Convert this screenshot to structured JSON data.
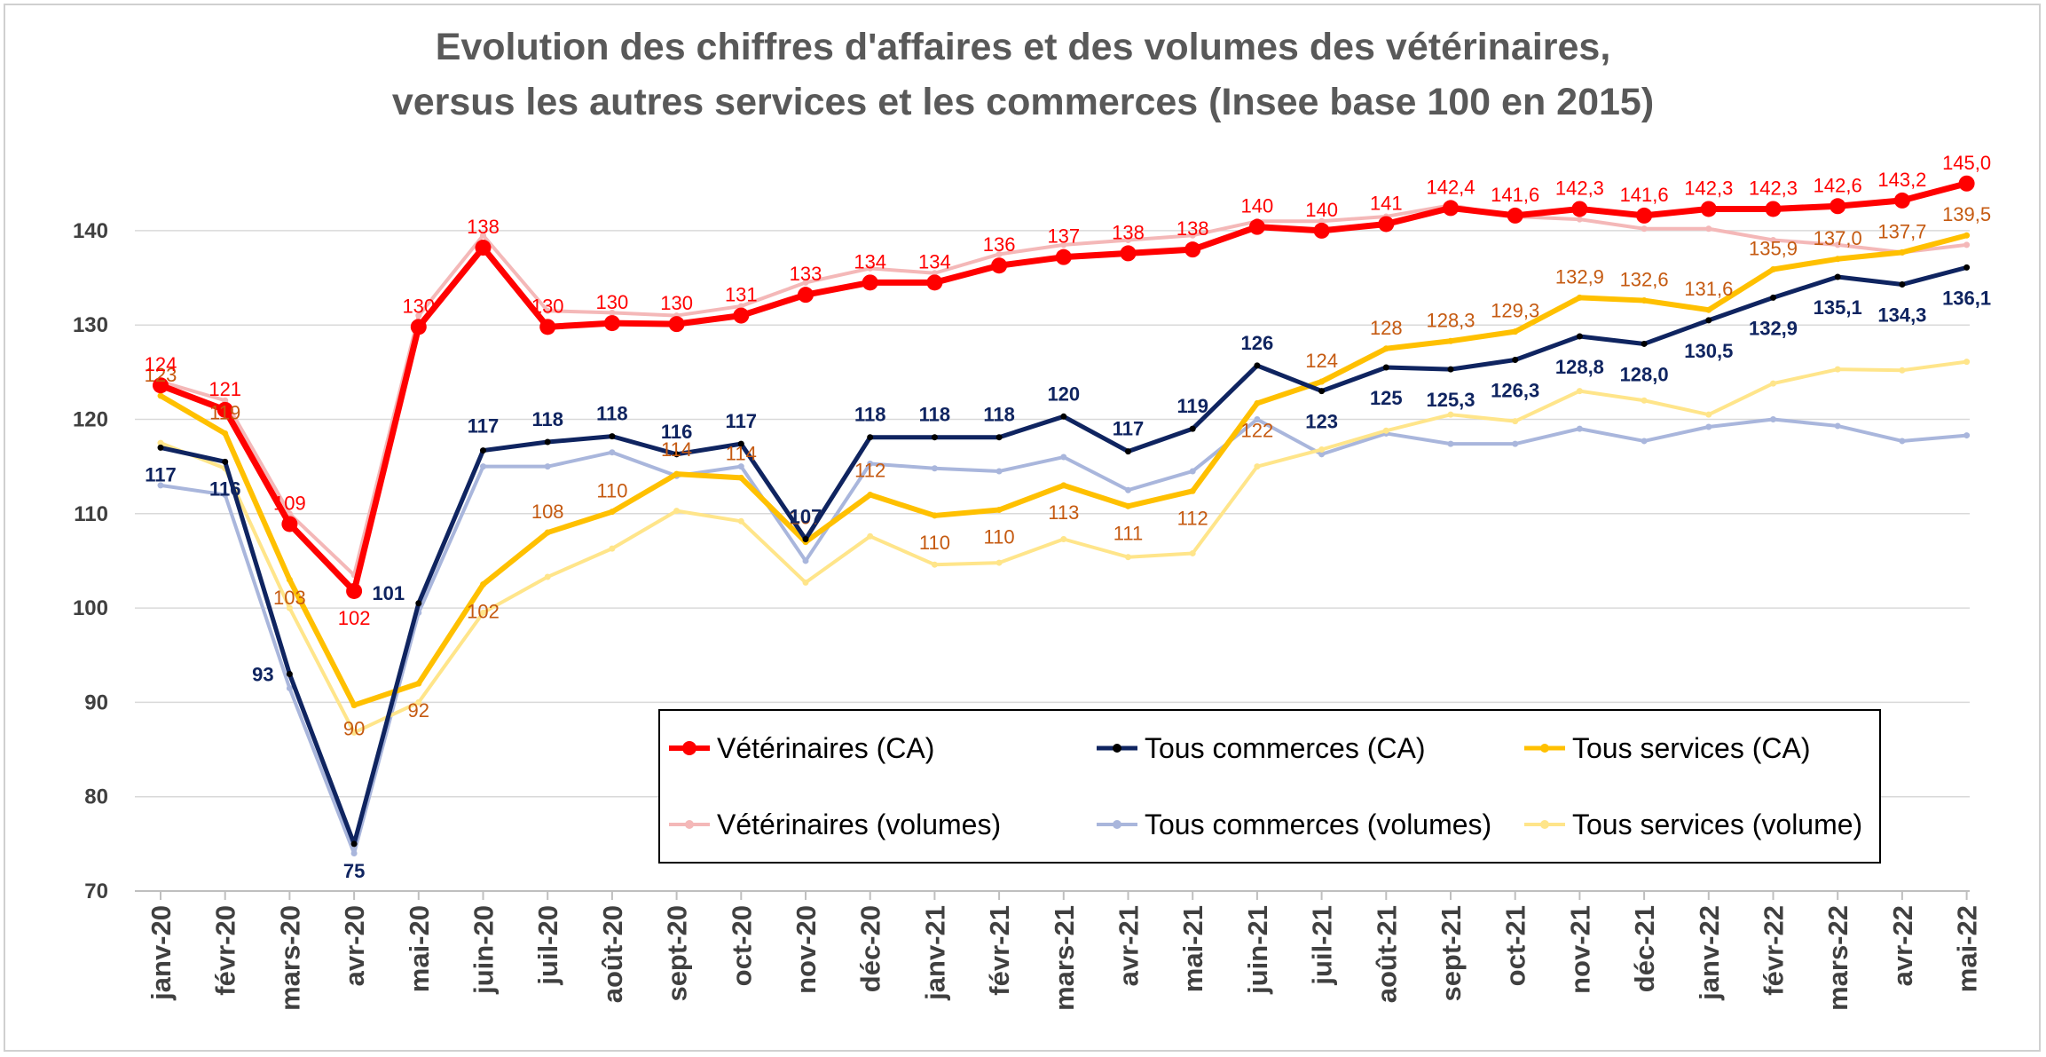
{
  "chart_data": {
    "type": "line",
    "title": "Evolution des chiffres d'affaires et des volumes des vétérinaires,",
    "subtitle": "versus les autres services et les commerces (Insee base 100 en 2015)",
    "xlabel": "",
    "ylabel": "",
    "ylim": [
      70,
      147
    ],
    "yticks": [
      70,
      80,
      90,
      100,
      110,
      120,
      130,
      140
    ],
    "grid": true,
    "legend_position": "bottom-right",
    "categories": [
      "janv-20",
      "févr-20",
      "mars-20",
      "avr-20",
      "mai-20",
      "juin-20",
      "juil-20",
      "août-20",
      "sept-20",
      "oct-20",
      "nov-20",
      "déc-20",
      "janv-21",
      "févr-21",
      "mars-21",
      "avr-21",
      "mai-21",
      "juin-21",
      "juil-21",
      "août-21",
      "sept-21",
      "oct-21",
      "nov-21",
      "déc-21",
      "janv-22",
      "févr-22",
      "mars-22",
      "avr-22",
      "mai-22"
    ],
    "series": [
      {
        "name": "Vétérinaires (volumes)",
        "color": "#f4b8b8",
        "width": 4,
        "marker": 7,
        "marker_color": "#f4b8b8",
        "values": [
          124,
          122,
          110,
          103.5,
          131,
          139.5,
          131.5,
          131.3,
          131,
          132,
          134.5,
          136,
          135.5,
          137.5,
          138.5,
          139,
          139.5,
          141,
          141,
          141.5,
          142.7,
          141.5,
          141.2,
          140.2,
          140.2,
          139,
          138.5,
          137.7,
          138.5
        ],
        "labels": []
      },
      {
        "name": "Tous commerces (volumes)",
        "color": "#a9b6dc",
        "width": 4,
        "marker": 7,
        "marker_color": "#a9b6dc",
        "values": [
          113,
          112,
          91.5,
          74,
          99.5,
          115,
          115,
          116.5,
          114,
          115,
          105,
          115.3,
          114.8,
          114.5,
          116,
          112.5,
          114.5,
          120,
          116.3,
          118.5,
          117.4,
          117.4,
          119,
          117.7,
          119.2,
          120,
          119.3,
          117.7,
          118.3
        ],
        "labels": []
      },
      {
        "name": "Tous services  (volume)",
        "color": "#ffe58a",
        "width": 4,
        "marker": 7,
        "marker_color": "#ffe58a",
        "values": [
          117.5,
          114.8,
          100,
          86.8,
          90,
          99.5,
          103.3,
          106.3,
          110.3,
          109.2,
          102.7,
          107.6,
          104.6,
          104.8,
          107.3,
          105.4,
          105.8,
          115,
          116.8,
          118.8,
          120.5,
          119.8,
          123,
          122,
          120.5,
          123.8,
          125.3,
          125.2,
          126.1
        ],
        "labels": []
      },
      {
        "name": "Tous services  (CA)",
        "color": "#ffc000",
        "width": 6,
        "marker": 7,
        "marker_color": "#ffc000",
        "values": [
          122.5,
          118.5,
          103,
          89.7,
          92,
          102.5,
          108,
          110.2,
          114.2,
          113.8,
          107,
          112,
          109.8,
          110.4,
          113,
          110.8,
          112.4,
          121.7,
          124,
          127.5,
          128.3,
          129.3,
          132.9,
          132.6,
          131.6,
          135.9,
          137.0,
          137.7,
          139.5
        ],
        "labels": [
          "123",
          "119",
          "103",
          "90",
          "92",
          "102",
          "108",
          "110",
          "114",
          "114",
          "107",
          "112",
          "110",
          "110",
          "113",
          "111",
          "112",
          "122",
          "124",
          "128",
          "128,3",
          "129,3",
          "132,9",
          "132,6",
          "131,6",
          "135,9",
          "137,0",
          "137,7",
          "139,5"
        ],
        "label_color": "#c55a11",
        "label_bold": false
      },
      {
        "name": "Tous commerces (CA)",
        "color": "#0f2460",
        "width": 5,
        "marker": 7,
        "marker_color": "#000000",
        "values": [
          117,
          115.5,
          93,
          75,
          100.5,
          116.7,
          117.6,
          118.2,
          116.3,
          117.4,
          107.3,
          118.1,
          118.1,
          118.1,
          120.3,
          116.6,
          119,
          125.7,
          123,
          125.5,
          125.3,
          126.3,
          128.8,
          128,
          130.5,
          132.9,
          135.1,
          134.3,
          136.1
        ],
        "labels": [
          "117",
          "116",
          "93",
          "75",
          "101",
          "117",
          "118",
          "118",
          "116",
          "117",
          "107",
          "118",
          "118",
          "118",
          "120",
          "117",
          "119",
          "126",
          "123",
          "125",
          "125,3",
          "126,3",
          "128,8",
          "128,0",
          "130,5",
          "132,9",
          "135,1",
          "134,3",
          "136,1"
        ],
        "label_color": "#0f2460",
        "label_bold": true
      },
      {
        "name": "Vétérinaires (CA)",
        "color": "#ff0000",
        "width": 7,
        "marker": 16,
        "marker_color": "#ff0000",
        "values": [
          123.6,
          121,
          108.9,
          101.8,
          129.8,
          138.2,
          129.8,
          130.2,
          130.1,
          131,
          133.2,
          134.5,
          134.5,
          136.3,
          137.2,
          137.6,
          138,
          140.4,
          140,
          140.7,
          142.4,
          141.6,
          142.3,
          141.6,
          142.3,
          142.3,
          142.6,
          143.2,
          145.0
        ],
        "labels": [
          "124",
          "121",
          "109",
          "102",
          "130",
          "138",
          "130",
          "130",
          "130",
          "131",
          "133",
          "134",
          "134",
          "136",
          "137",
          "138",
          "138",
          "140",
          "140",
          "141",
          "142,4",
          "141,6",
          "142,3",
          "141,6",
          "142,3",
          "142,3",
          "142,6",
          "143,2",
          "145,0"
        ],
        "label_color": "#ff0000",
        "label_bold": false
      }
    ]
  },
  "legend": {
    "items": [
      {
        "label": "Vétérinaires (CA)",
        "color": "#ff0000",
        "icon": "line-dot-marker"
      },
      {
        "label": "Tous commerces (CA)",
        "color": "#0f2460",
        "icon": "line-dot-marker"
      },
      {
        "label": "Tous services  (CA)",
        "color": "#ffc000",
        "icon": "line-dot-marker"
      },
      {
        "label": "Vétérinaires (volumes)",
        "color": "#f4b8b8",
        "icon": "line-dot-marker"
      },
      {
        "label": "Tous commerces (volumes)",
        "color": "#a9b6dc",
        "icon": "line-dot-marker"
      },
      {
        "label": "Tous services  (volume)",
        "color": "#ffe58a",
        "icon": "line-dot-marker"
      }
    ]
  }
}
